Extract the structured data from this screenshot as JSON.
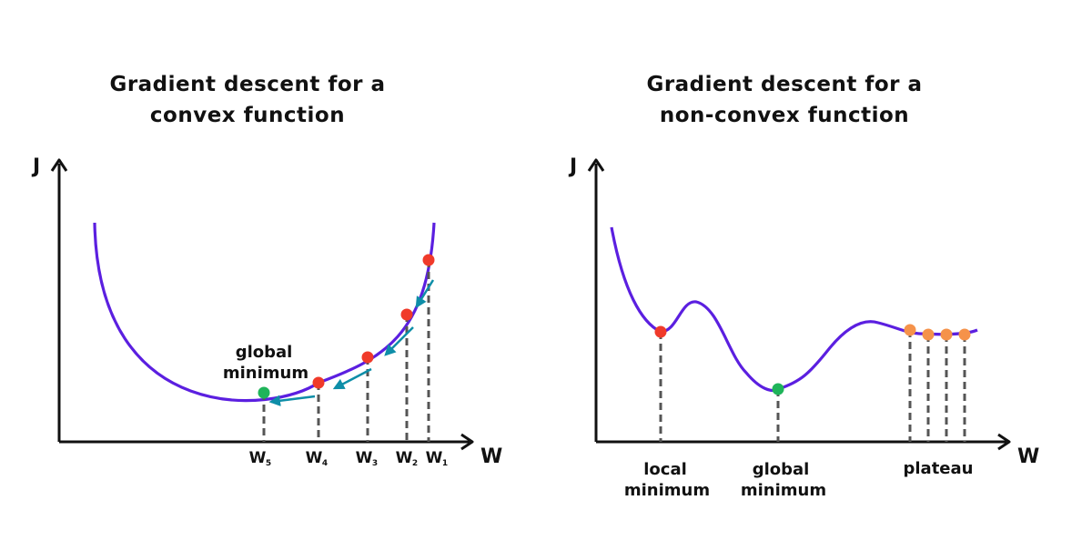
{
  "colors": {
    "curve": "#5b1fe0",
    "axis": "#111111",
    "dashed": "#555555",
    "step_point": "#f03a2a",
    "minimum_point": "#1fb45a",
    "plateau_point": "#f5924a",
    "arrow": "#0e8ea8"
  },
  "convex": {
    "title_line1": "Gradient descent for a",
    "title_line2": "convex function",
    "y_axis_label": "J",
    "x_axis_label": "W",
    "annotation_line1": "global",
    "annotation_line2": "minimum",
    "steps": [
      {
        "label": "W",
        "sub": "1"
      },
      {
        "label": "W",
        "sub": "2"
      },
      {
        "label": "W",
        "sub": "3"
      },
      {
        "label": "W",
        "sub": "4"
      },
      {
        "label": "W",
        "sub": "5"
      }
    ]
  },
  "nonconvex": {
    "title_line1": "Gradient descent for a",
    "title_line2": "non-convex  function",
    "y_axis_label": "J",
    "x_axis_label": "W",
    "local_min_line1": "local",
    "local_min_line2": "minimum",
    "global_min_line1": "global",
    "global_min_line2": "minimum",
    "plateau_label": "plateau"
  }
}
